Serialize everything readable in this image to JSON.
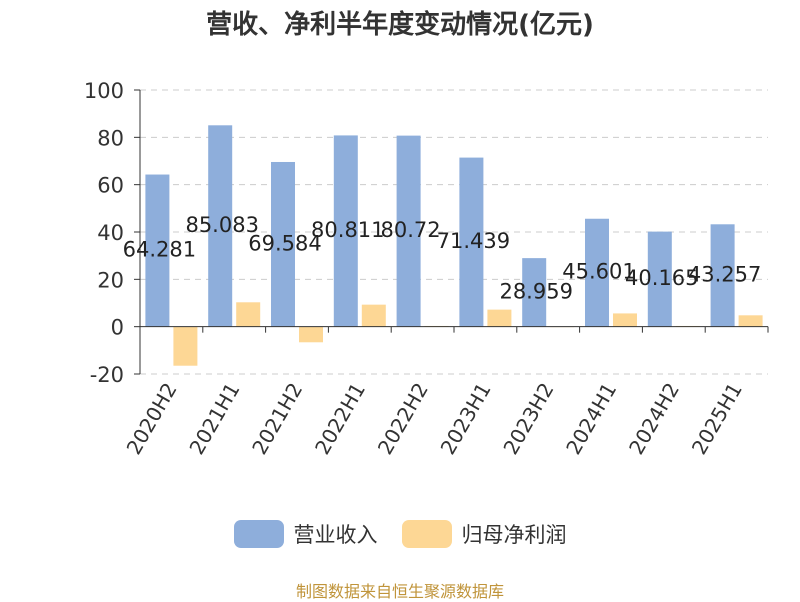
{
  "chart_data": {
    "type": "bar",
    "title": "营收、净利半年度变动情况(亿元)",
    "categories": [
      "2020H2",
      "2021H1",
      "2021H2",
      "2022H1",
      "2022H2",
      "2023H1",
      "2023H2",
      "2024H1",
      "2024H2",
      "2025H1"
    ],
    "series": [
      {
        "name": "营业收入",
        "color": "#8eaedb",
        "values": [
          64.281,
          85.083,
          69.584,
          80.811,
          80.72,
          71.439,
          28.959,
          45.601,
          40.165,
          43.257
        ],
        "labels": [
          "64.281",
          "85.083",
          "69.584",
          "80.811",
          "80.72",
          "71.439",
          "28.959",
          "45.601",
          "40.165",
          "43.257"
        ]
      },
      {
        "name": "归母净利润",
        "color": "#fdd795",
        "values": [
          -16.5,
          10.3,
          -6.6,
          9.3,
          0.3,
          7.2,
          0.0,
          5.6,
          0.3,
          4.8
        ]
      }
    ],
    "yticks": [
      100,
      80,
      60,
      40,
      20,
      0,
      -20
    ],
    "ylim": [
      -20,
      100
    ],
    "grid": true,
    "legend": "bottom-center"
  },
  "source": "制图数据来自恒生聚源数据库"
}
